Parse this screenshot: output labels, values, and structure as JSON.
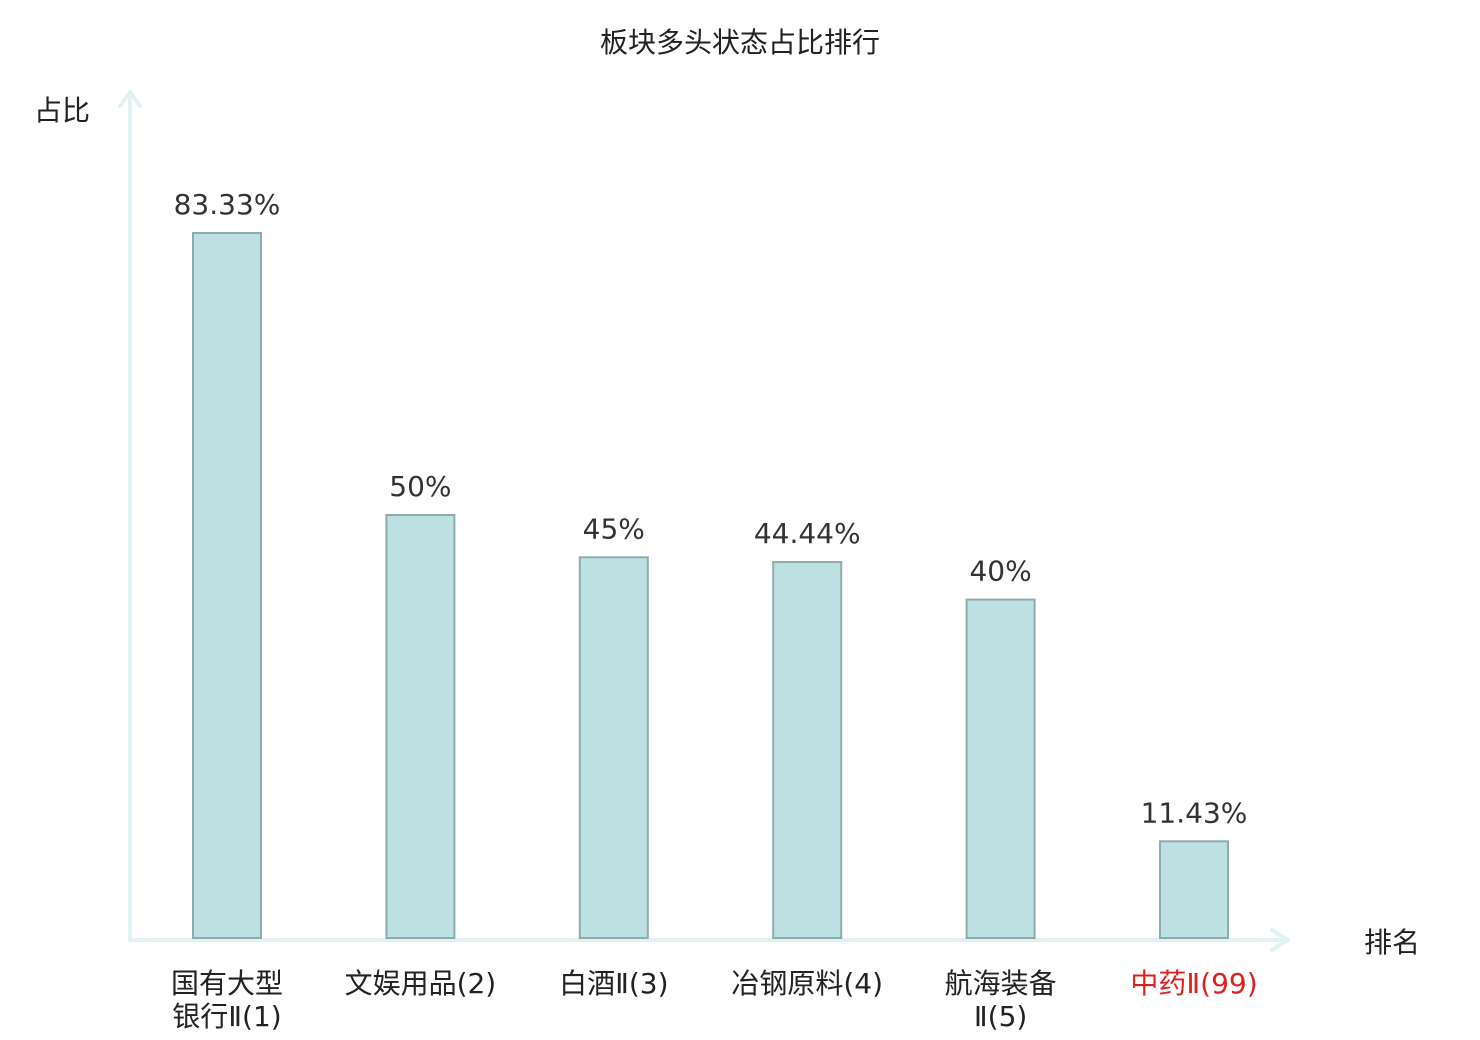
{
  "chart_data": {
    "type": "bar",
    "title": "板块多头状态占比排行",
    "ylabel": "占比",
    "xlabel": "排名",
    "categories": [
      [
        "国有大型",
        "银行Ⅱ(1)"
      ],
      [
        "文娱用品(2)"
      ],
      [
        "白酒Ⅱ(3)"
      ],
      [
        "冶钢原料(4)"
      ],
      [
        "航海装备",
        "Ⅱ(5)"
      ],
      [
        "中药Ⅱ(99)"
      ]
    ],
    "values": [
      83.33,
      50,
      45,
      44.44,
      40,
      11.43
    ],
    "value_labels": [
      "83.33%",
      "50%",
      "45%",
      "44.44%",
      "40%",
      "11.43%"
    ],
    "highlight_index": 5,
    "ylim": [
      0,
      100
    ],
    "grid": false,
    "colors": {
      "bar_fill": "#bde0e3",
      "bar_stroke": "#8fabad",
      "axis": "#e0f2f1",
      "highlight_text": "#e0201e"
    }
  }
}
